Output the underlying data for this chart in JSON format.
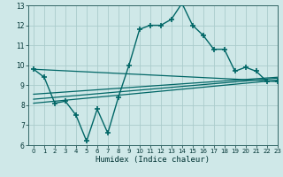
{
  "bg_color": "#cfe8e8",
  "grid_color": "#b8d8d8",
  "line_color": "#006666",
  "marker_color": "#006666",
  "xlabel": "Humidex (Indice chaleur)",
  "xlim": [
    -0.5,
    23
  ],
  "ylim": [
    6,
    13
  ],
  "xticks": [
    0,
    1,
    2,
    3,
    4,
    5,
    6,
    7,
    8,
    9,
    10,
    11,
    12,
    13,
    14,
    15,
    16,
    17,
    18,
    19,
    20,
    21,
    22,
    23
  ],
  "yticks": [
    6,
    7,
    8,
    9,
    10,
    11,
    12,
    13
  ],
  "series1_x": [
    0,
    1,
    2,
    3,
    4,
    5,
    6,
    7,
    8,
    9,
    10,
    11,
    12,
    13,
    14,
    15,
    16,
    17,
    18,
    19,
    20,
    21,
    22,
    23
  ],
  "series1_y": [
    9.8,
    9.4,
    8.1,
    8.2,
    7.5,
    6.2,
    7.8,
    6.6,
    8.4,
    10.0,
    11.8,
    12.0,
    12.0,
    12.3,
    13.1,
    12.0,
    11.5,
    10.8,
    10.8,
    9.7,
    9.9,
    9.7,
    9.2,
    9.2
  ],
  "series2_x": [
    0,
    23
  ],
  "series2_y": [
    8.1,
    9.25
  ],
  "series3_x": [
    0,
    23
  ],
  "series3_y": [
    8.3,
    9.35
  ],
  "series4_x": [
    0,
    23
  ],
  "series4_y": [
    8.55,
    9.4
  ],
  "series5_x": [
    0,
    23
  ],
  "series5_y": [
    9.8,
    9.2
  ]
}
